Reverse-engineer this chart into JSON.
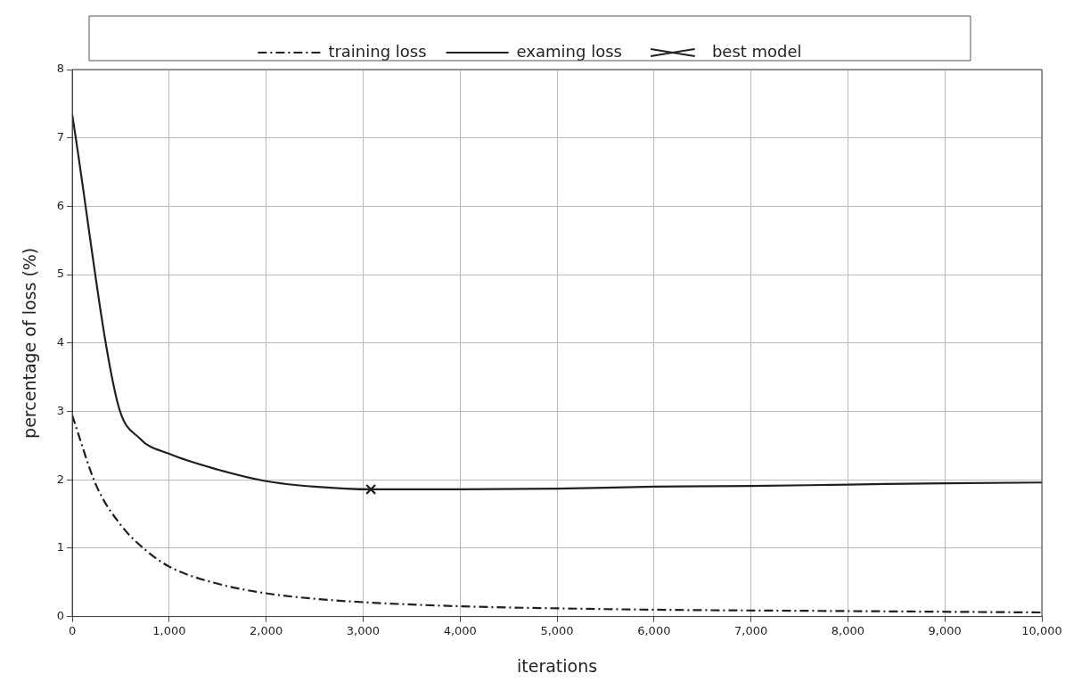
{
  "chart_data": {
    "type": "line",
    "xlabel": "iterations",
    "ylabel": "percentage of loss (%)",
    "xlim": [
      0,
      10000
    ],
    "ylim": [
      0,
      8
    ],
    "xticks": [
      0,
      {
        "value": 1000,
        "label": "1,000"
      },
      {
        "value": 2000,
        "label": "2,000"
      },
      {
        "value": 3000,
        "label": "3,000"
      },
      {
        "value": 4000,
        "label": "4,000"
      },
      {
        "value": 5000,
        "label": "5,000"
      },
      {
        "value": 6000,
        "label": "6,000"
      },
      {
        "value": 7000,
        "label": "7,000"
      },
      {
        "value": 8000,
        "label": "8,000"
      },
      {
        "value": 9000,
        "label": "9,000"
      },
      {
        "value": 10000,
        "label": "10,000"
      }
    ],
    "yticks": [
      0,
      1,
      2,
      3,
      4,
      5,
      6,
      7,
      8
    ],
    "grid": true,
    "legend": "top",
    "marker": "none",
    "series": [
      {
        "name": "training loss",
        "color": "#231f20",
        "line_style": "dashed",
        "x": [
          0,
          250,
          500,
          750,
          1000,
          1500,
          2000,
          2500,
          3000,
          4000,
          5000,
          6000,
          8000,
          10000
        ],
        "values": [
          2.94,
          1.91,
          1.34,
          0.98,
          0.73,
          0.48,
          0.34,
          0.26,
          0.21,
          0.15,
          0.12,
          0.1,
          0.08,
          0.06
        ]
      },
      {
        "name": "examing loss",
        "color": "#231f20",
        "line_style": "solid",
        "x": [
          0,
          465,
          700,
          1000,
          1500,
          2000,
          2500,
          3080,
          4000,
          5000,
          6000,
          7000,
          8000,
          9000,
          10000
        ],
        "values": [
          7.34,
          3.14,
          2.6,
          2.38,
          2.15,
          1.98,
          1.9,
          1.86,
          1.86,
          1.87,
          1.9,
          1.91,
          1.93,
          1.95,
          1.96
        ]
      },
      {
        "name": "best model",
        "type": "scatter",
        "color": "#231f20",
        "marker": "cross",
        "x": [
          3080
        ],
        "values": [
          1.86
        ]
      }
    ]
  }
}
